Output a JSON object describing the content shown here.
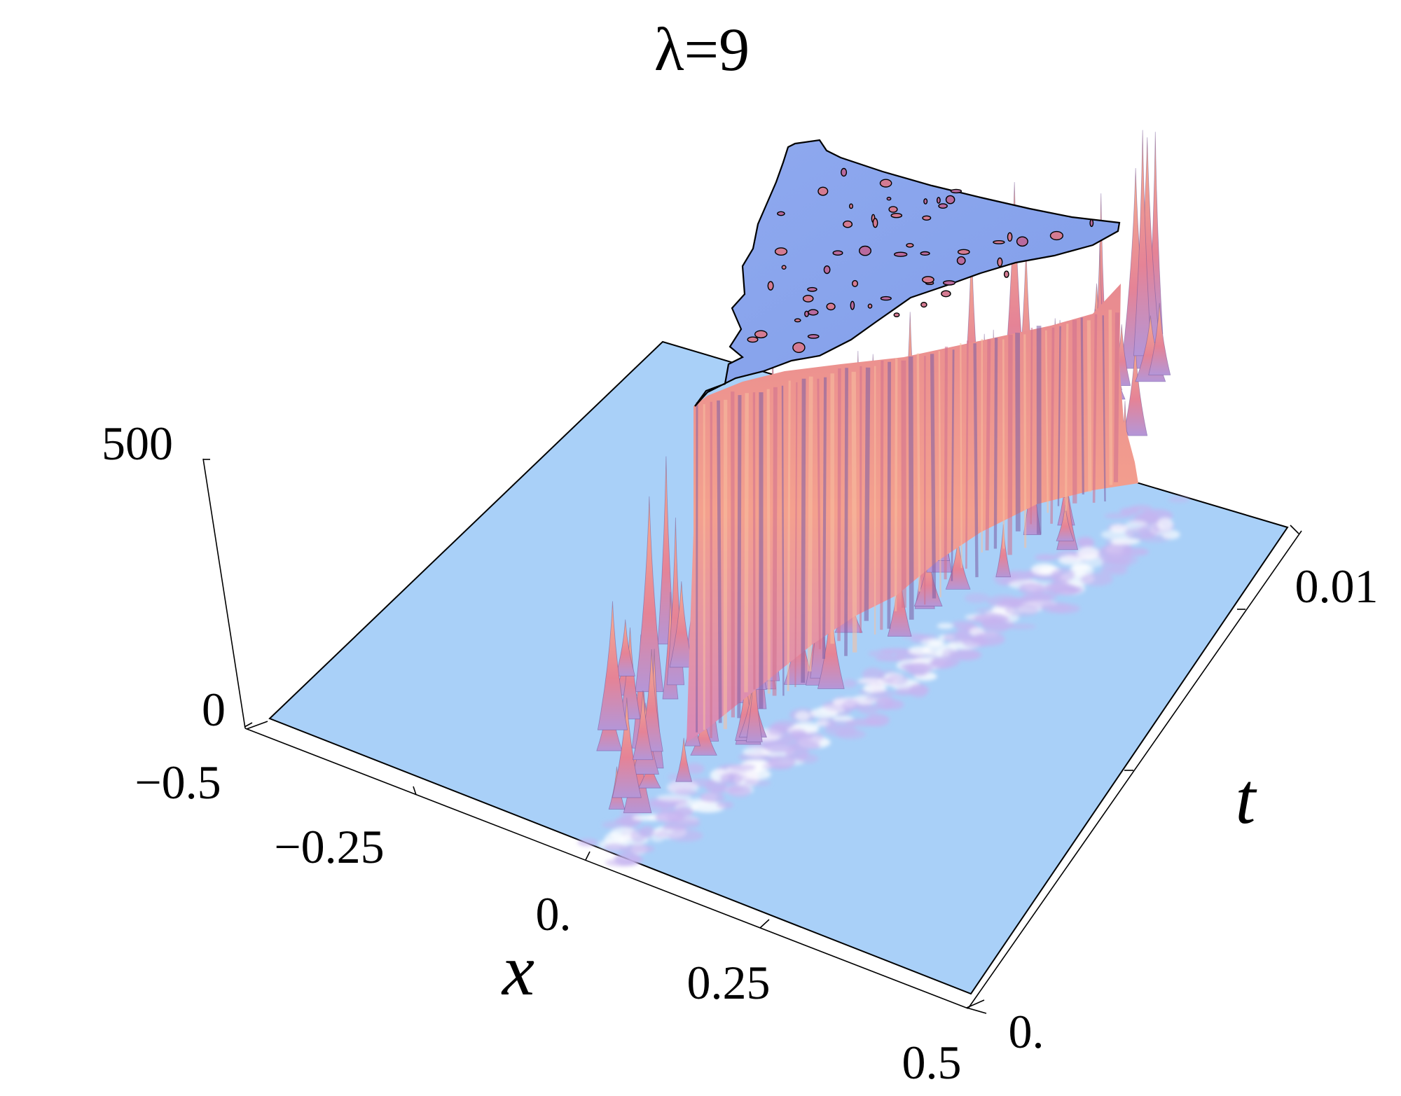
{
  "chart_data": {
    "type": "surface3d",
    "title": "λ=9",
    "axes": {
      "x": {
        "label": "x",
        "range": [
          -0.5,
          0.5
        ],
        "ticks": [
          -0.5,
          -0.25,
          0.0,
          0.25,
          0.5
        ],
        "tick_labels": [
          "−0.5",
          "−0.25",
          "0.",
          "0.25",
          "0.5"
        ]
      },
      "t": {
        "label": "t",
        "range": [
          0.0,
          0.01
        ],
        "ticks": [
          0.0,
          0.01
        ],
        "tick_labels": [
          "0.",
          "0.01"
        ]
      },
      "z": {
        "label": "",
        "range": [
          0,
          500
        ],
        "ticks": [
          0,
          500
        ],
        "tick_labels": [
          "0",
          "500"
        ]
      }
    },
    "surface": {
      "description_values": "flat baseline near 0 for most of the domain; a region of sharp peaks starting near x=0, t=0 that widens with t and saturates at the top of the plot range (500), clipped flat at the cap",
      "plateau_level": 500,
      "front_x_at_t": [
        {
          "t": 0.0,
          "x": 0.0
        },
        {
          "t": 0.01,
          "x": 0.2
        }
      ],
      "baseline_level": 0
    },
    "colors": {
      "baseline": "#a9d0f8",
      "plateau": "#8ba6ee",
      "spikes_light": "#f7a88e",
      "spikes_mid": "#e07a86",
      "spikes_dark": "#7d5fa6",
      "outline": "#000000"
    }
  }
}
